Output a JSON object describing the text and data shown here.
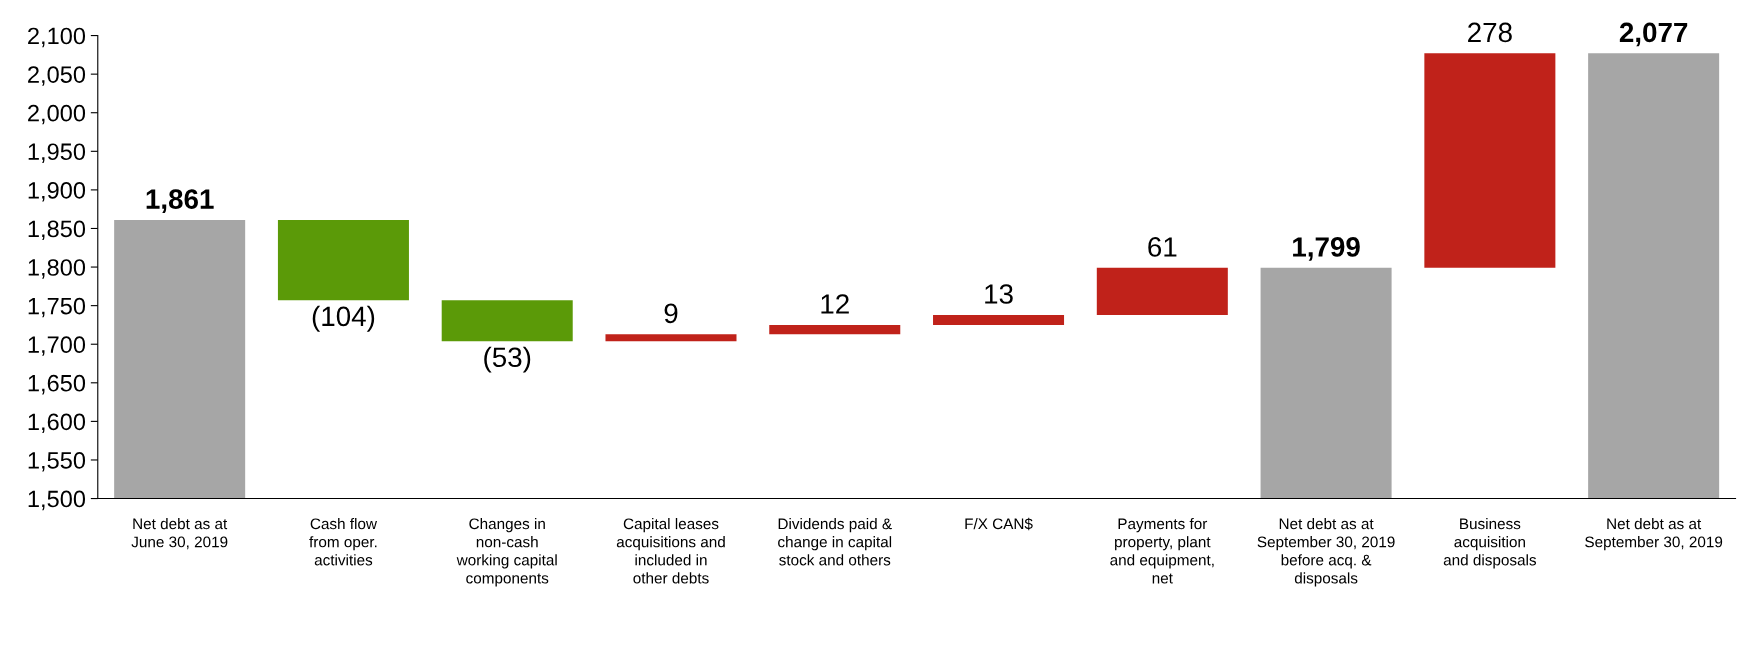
{
  "chart_data": {
    "type": "bar",
    "categories": [
      "Net debt as at\nJune 30, 2019",
      "Cash flow\nfrom oper.\nactivities",
      "Changes in\nnon-cash\nworking capital\ncomponents",
      "Capital leases\nacquisitions and\nincluded in\nother debts",
      "Dividends paid &\nchange in capital\nstock and others",
      "F/X CAN$",
      "Payments for\nproperty, plant\nand equipment,\nnet",
      "Net debt as at\nSeptember 30, 2019\nbefore acq. &\ndisposals",
      "Business\nacquisition\nand disposals",
      "Net debt as at\nSeptember 30, 2019"
    ],
    "values": [
      1861,
      -104,
      -53,
      9,
      12,
      13,
      61,
      1799,
      278,
      2077
    ],
    "base": [
      0,
      1861,
      1757,
      1704,
      1713,
      1725,
      1738,
      0,
      1799,
      0
    ],
    "colors": [
      "#a6a6a6",
      "#5b9a08",
      "#5b9a08",
      "#c0221a",
      "#c0221a",
      "#c0221a",
      "#c0221a",
      "#a6a6a6",
      "#c0221a",
      "#a6a6a6"
    ],
    "value_labels": [
      "1,861",
      "(104)",
      "(53)",
      "9",
      "12",
      "13",
      "61",
      "1,799",
      "278",
      "2,077"
    ],
    "ylim": [
      1500,
      2100
    ],
    "yticks": [
      {
        "value": 1500,
        "label": "1,500"
      },
      {
        "value": 1550,
        "label": "1,550"
      },
      {
        "value": 1600,
        "label": "1,600"
      },
      {
        "value": 1650,
        "label": "1,650"
      },
      {
        "value": 1700,
        "label": "1,700"
      },
      {
        "value": 1750,
        "label": "1,750"
      },
      {
        "value": 1800,
        "label": "1,800"
      },
      {
        "value": 1850,
        "label": "1,850"
      },
      {
        "value": 1900,
        "label": "1,900"
      },
      {
        "value": 1950,
        "label": "1,950"
      },
      {
        "value": 2000,
        "label": "2,000"
      },
      {
        "value": 2050,
        "label": "2,050"
      },
      {
        "value": 2100,
        "label": "2,100"
      }
    ],
    "grid": false
  }
}
